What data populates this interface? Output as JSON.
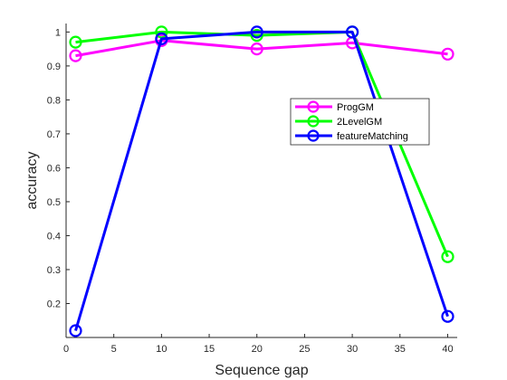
{
  "chart_data": {
    "type": "line",
    "xlabel": "Sequence gap",
    "ylabel": "accuracy",
    "xlim": [
      0,
      41
    ],
    "ylim": [
      0.1,
      1.025
    ],
    "xticks": [
      0,
      5,
      10,
      15,
      20,
      25,
      30,
      35,
      40
    ],
    "xtick_labels": [
      "0",
      "5",
      "10",
      "15",
      "20",
      "25",
      "30",
      "35",
      "40"
    ],
    "yticks": [
      0.2,
      0.3,
      0.4,
      0.5,
      0.6,
      0.7,
      0.8,
      0.9,
      1.0
    ],
    "ytick_labels": [
      "0.2",
      "0.3",
      "0.4",
      "0.5",
      "0.6",
      "0.7",
      "0.8",
      "0.9",
      "1"
    ],
    "grid": false,
    "legend_position": "right",
    "x": [
      1,
      10,
      20,
      30,
      40
    ],
    "series": [
      {
        "name": "ProgGM",
        "color": "#ff00ff",
        "values": [
          0.93,
          0.975,
          0.95,
          0.968,
          0.935
        ]
      },
      {
        "name": "2LevelGM",
        "color": "#00ff00",
        "values": [
          0.97,
          1.0,
          0.99,
          1.0,
          0.338
        ]
      },
      {
        "name": "featureMatching",
        "color": "#0000ff",
        "values": [
          0.12,
          0.98,
          1.0,
          1.0,
          0.162
        ]
      }
    ]
  }
}
